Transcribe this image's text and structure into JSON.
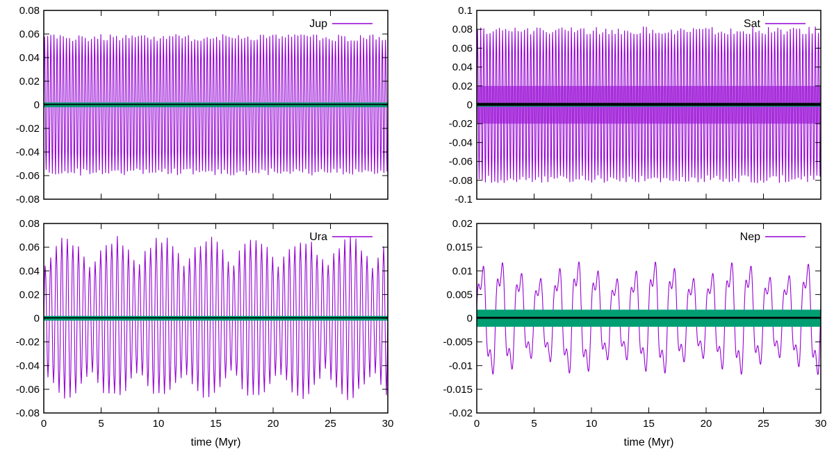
{
  "colors": {
    "primary": "#9400d3",
    "secondary": "#009e73",
    "tertiary": "#000000",
    "frame": "#000000"
  },
  "chart_data": [
    {
      "type": "line",
      "legend": [
        "Jup"
      ],
      "legend_position": "top-right",
      "xlabel": "",
      "xlim": [
        0,
        30
      ],
      "ylim": [
        -0.08,
        0.08
      ],
      "xticks": [
        0,
        5,
        10,
        15,
        20,
        25,
        30
      ],
      "xtick_labels_shown": false,
      "yticks": [
        "0.08",
        "0.06",
        "0.04",
        "0.02",
        "0",
        "-0.02",
        "-0.04",
        "-0.06",
        "-0.08"
      ],
      "series": [
        {
          "name": "Jup",
          "color": "#9400d3",
          "amplitude": 0.06,
          "cycles": 110,
          "kind": "oscillation"
        },
        {
          "color": "#009e73",
          "amplitude": 0.002,
          "kind": "band"
        },
        {
          "color": "#000000",
          "amplitude": 0.0005,
          "kind": "line"
        }
      ]
    },
    {
      "type": "line",
      "legend": [
        "Sat"
      ],
      "legend_position": "top-right",
      "xlabel": "",
      "xlim": [
        0,
        30
      ],
      "ylim": [
        -0.1,
        0.1
      ],
      "xticks": [
        0,
        5,
        10,
        15,
        20,
        25,
        30
      ],
      "xtick_labels_shown": false,
      "yticks": [
        "0.1",
        "0.08",
        "0.06",
        "0.04",
        "0.02",
        "0",
        "-0.02",
        "-0.04",
        "-0.06",
        "-0.08",
        "-0.1"
      ],
      "series": [
        {
          "name": "Sat",
          "color": "#9400d3",
          "amplitude": 0.083,
          "cycles": 110,
          "kind": "dense-oscillation",
          "inner_band": 0.02
        },
        {
          "color": "#009e73",
          "amplitude": 0.002,
          "kind": "band"
        },
        {
          "color": "#000000",
          "amplitude": 0.0015,
          "kind": "line"
        }
      ]
    },
    {
      "type": "line",
      "legend": [
        "Ura"
      ],
      "legend_position": "top-right",
      "xlabel": "time (Myr)",
      "xlim": [
        0,
        30
      ],
      "ylim": [
        -0.08,
        0.08
      ],
      "xticks": [
        0,
        5,
        10,
        15,
        20,
        25,
        30
      ],
      "xtick_labels_shown": true,
      "yticks": [
        "0.08",
        "0.06",
        "0.04",
        "0.02",
        "0",
        "-0.02",
        "-0.04",
        "-0.06",
        "-0.08"
      ],
      "series": [
        {
          "name": "Ura",
          "color": "#9400d3",
          "amplitude": 0.07,
          "cycles": 62,
          "kind": "oscillation"
        },
        {
          "color": "#009e73",
          "amplitude": 0.002,
          "kind": "band"
        },
        {
          "color": "#000000",
          "amplitude": 0.0005,
          "kind": "line"
        }
      ]
    },
    {
      "type": "line",
      "legend": [
        "Nep"
      ],
      "legend_position": "top-right",
      "xlabel": "time (Myr)",
      "xlim": [
        0,
        30
      ],
      "ylim": [
        -0.02,
        0.02
      ],
      "xticks": [
        0,
        5,
        10,
        15,
        20,
        25,
        30
      ],
      "xtick_labels_shown": true,
      "yticks": [
        "0.02",
        "0.015",
        "0.01",
        "0.005",
        "0",
        "-0.005",
        "-0.01",
        "-0.015",
        "-0.02"
      ],
      "series": [
        {
          "name": "Nep",
          "color": "#9400d3",
          "amplitude": 0.0145,
          "cycles": 18,
          "kind": "irregular-oscillation"
        },
        {
          "color": "#009e73",
          "amplitude": 0.0018,
          "kind": "band"
        },
        {
          "color": "#000000",
          "amplitude": 0.0002,
          "kind": "line"
        }
      ]
    }
  ]
}
